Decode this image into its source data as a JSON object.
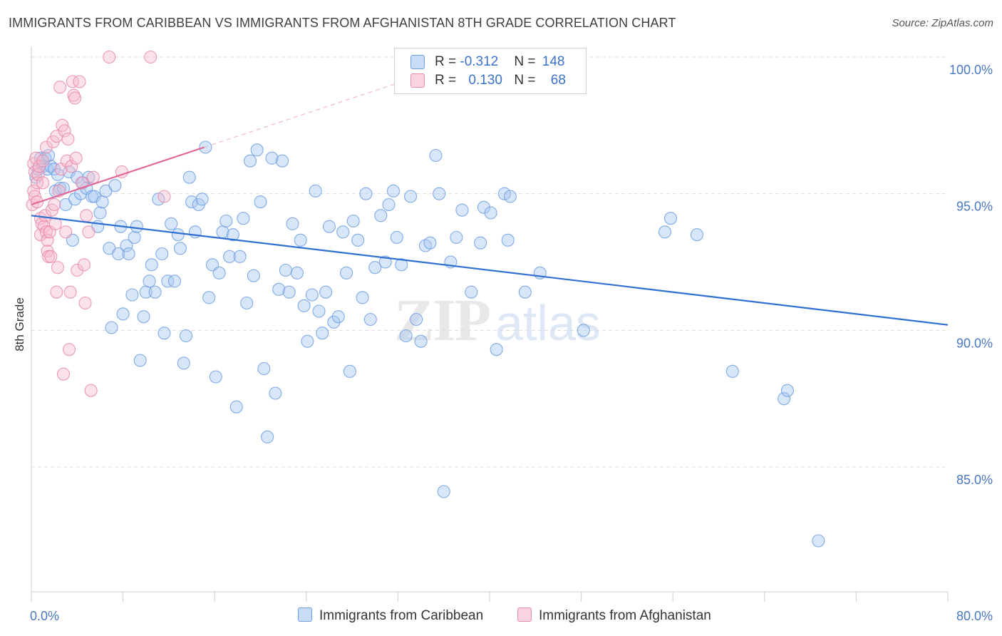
{
  "title": "IMMIGRANTS FROM CARIBBEAN VS IMMIGRANTS FROM AFGHANISTAN 8TH GRADE CORRELATION CHART",
  "source": "Source: ZipAtlas.com",
  "watermark": {
    "zip": "ZIP",
    "atlas": "atlas"
  },
  "legend": {
    "rows": [
      {
        "r_label": "R = ",
        "r_value": "-0.312",
        "n_label": "N = ",
        "n_value": "148",
        "color": "#6f9fe0",
        "fill": "#aecbf2"
      },
      {
        "r_label": "R = ",
        "r_value": "0.130",
        "n_label": "N = ",
        "n_value": "68",
        "color": "#e88aaa",
        "fill": "#f7c1d2"
      }
    ]
  },
  "bottom_legend": {
    "items": [
      {
        "label": "Immigrants from Caribbean",
        "color": "#6f9fe0",
        "fill": "#aecbf2"
      },
      {
        "label": "Immigrants from Afghanistan",
        "color": "#e88aaa",
        "fill": "#f7c1d2"
      }
    ]
  },
  "chart_data": {
    "type": "scatter",
    "title": "IMMIGRANTS FROM CARIBBEAN VS IMMIGRANTS FROM AFGHANISTAN 8TH GRADE CORRELATION CHART",
    "xlabel": "",
    "ylabel": "8th Grade",
    "xlim": [
      0,
      80
    ],
    "ylim": [
      80.5,
      100.5
    ],
    "x_tick_labels": [
      "0.0%",
      "80.0%"
    ],
    "y_ticks": [
      85,
      90,
      95,
      100
    ],
    "y_tick_labels": [
      "85.0%",
      "90.0%",
      "95.0%",
      "100.0%"
    ],
    "grid": "horizontal dashed",
    "legend_position": "top-center",
    "series": [
      {
        "name": "Immigrants from Caribbean",
        "color": "#6f9fe0",
        "trend": {
          "x": [
            0,
            80
          ],
          "y": [
            94.2,
            90.2
          ]
        },
        "points": [
          [
            0.4,
            95.6
          ],
          [
            0.6,
            95.9
          ],
          [
            0.8,
            96.3
          ],
          [
            1.0,
            96.0
          ],
          [
            1.2,
            96.3
          ],
          [
            1.4,
            95.9
          ],
          [
            1.5,
            96.4
          ],
          [
            1.7,
            96.0
          ],
          [
            2.0,
            95.9
          ],
          [
            2.1,
            95.1
          ],
          [
            2.3,
            95.7
          ],
          [
            2.5,
            95.2
          ],
          [
            2.8,
            95.2
          ],
          [
            3.0,
            94.6
          ],
          [
            3.3,
            95.8
          ],
          [
            3.6,
            93.3
          ],
          [
            3.8,
            94.8
          ],
          [
            4.0,
            95.6
          ],
          [
            4.3,
            95.0
          ],
          [
            4.5,
            95.4
          ],
          [
            4.8,
            95.2
          ],
          [
            5.0,
            95.6
          ],
          [
            5.3,
            94.9
          ],
          [
            5.5,
            94.9
          ],
          [
            5.8,
            93.8
          ],
          [
            6.0,
            94.3
          ],
          [
            6.2,
            94.7
          ],
          [
            6.5,
            95.1
          ],
          [
            6.8,
            93.0
          ],
          [
            7.0,
            90.1
          ],
          [
            7.3,
            95.3
          ],
          [
            7.6,
            92.8
          ],
          [
            7.8,
            93.8
          ],
          [
            8.0,
            90.6
          ],
          [
            8.3,
            93.1
          ],
          [
            8.5,
            92.8
          ],
          [
            8.8,
            91.3
          ],
          [
            9.0,
            93.4
          ],
          [
            9.2,
            93.8
          ],
          [
            9.5,
            88.9
          ],
          [
            9.8,
            90.5
          ],
          [
            10.0,
            91.4
          ],
          [
            10.3,
            91.8
          ],
          [
            10.5,
            92.4
          ],
          [
            10.8,
            91.4
          ],
          [
            11.1,
            94.8
          ],
          [
            11.4,
            92.8
          ],
          [
            11.6,
            89.9
          ],
          [
            11.9,
            91.8
          ],
          [
            12.2,
            93.9
          ],
          [
            12.5,
            91.8
          ],
          [
            12.8,
            93.5
          ],
          [
            13.0,
            93.0
          ],
          [
            13.3,
            88.8
          ],
          [
            13.5,
            89.8
          ],
          [
            13.8,
            95.6
          ],
          [
            14.0,
            94.7
          ],
          [
            14.3,
            93.6
          ],
          [
            14.6,
            94.6
          ],
          [
            14.9,
            94.8
          ],
          [
            15.2,
            96.7
          ],
          [
            15.5,
            91.2
          ],
          [
            15.8,
            92.4
          ],
          [
            16.1,
            88.3
          ],
          [
            16.4,
            92.1
          ],
          [
            16.7,
            93.6
          ],
          [
            17.0,
            94.0
          ],
          [
            17.3,
            92.7
          ],
          [
            17.6,
            93.5
          ],
          [
            17.9,
            87.2
          ],
          [
            18.2,
            92.7
          ],
          [
            18.5,
            94.1
          ],
          [
            18.8,
            91.0
          ],
          [
            19.1,
            96.2
          ],
          [
            19.4,
            92.0
          ],
          [
            19.7,
            96.6
          ],
          [
            20.0,
            94.7
          ],
          [
            20.3,
            88.6
          ],
          [
            20.6,
            86.1
          ],
          [
            21.0,
            96.3
          ],
          [
            21.3,
            87.7
          ],
          [
            21.6,
            91.5
          ],
          [
            21.9,
            96.2
          ],
          [
            22.2,
            92.2
          ],
          [
            22.5,
            91.4
          ],
          [
            22.8,
            93.9
          ],
          [
            23.2,
            92.1
          ],
          [
            23.5,
            93.3
          ],
          [
            23.8,
            90.9
          ],
          [
            24.1,
            89.6
          ],
          [
            24.5,
            91.3
          ],
          [
            24.8,
            95.1
          ],
          [
            25.1,
            90.7
          ],
          [
            25.4,
            89.9
          ],
          [
            25.7,
            91.4
          ],
          [
            26.0,
            93.8
          ],
          [
            26.4,
            90.3
          ],
          [
            26.8,
            90.5
          ],
          [
            27.2,
            93.6
          ],
          [
            27.5,
            92.1
          ],
          [
            27.8,
            88.5
          ],
          [
            28.1,
            94.0
          ],
          [
            28.5,
            93.3
          ],
          [
            28.9,
            91.2
          ],
          [
            29.2,
            95.0
          ],
          [
            29.6,
            90.4
          ],
          [
            30.0,
            92.3
          ],
          [
            30.5,
            94.2
          ],
          [
            30.9,
            92.5
          ],
          [
            31.2,
            94.6
          ],
          [
            31.6,
            95.1
          ],
          [
            31.9,
            93.4
          ],
          [
            32.3,
            92.4
          ],
          [
            32.7,
            89.8
          ],
          [
            33.1,
            94.9
          ],
          [
            33.6,
            90.4
          ],
          [
            34.0,
            89.6
          ],
          [
            34.4,
            93.1
          ],
          [
            34.8,
            93.2
          ],
          [
            35.3,
            96.4
          ],
          [
            35.6,
            95.0
          ],
          [
            36.0,
            84.1
          ],
          [
            36.6,
            92.5
          ],
          [
            37.1,
            93.4
          ],
          [
            37.6,
            94.4
          ],
          [
            38.4,
            91.4
          ],
          [
            39.2,
            93.2
          ],
          [
            39.5,
            94.5
          ],
          [
            40.1,
            94.3
          ],
          [
            40.6,
            89.3
          ],
          [
            41.3,
            95.0
          ],
          [
            41.6,
            93.3
          ],
          [
            41.8,
            94.9
          ],
          [
            43.1,
            91.4
          ],
          [
            43.8,
            100.0
          ],
          [
            44.4,
            92.1
          ],
          [
            47.6,
            100.0
          ],
          [
            48.2,
            90.0
          ],
          [
            55.3,
            93.6
          ],
          [
            55.8,
            94.1
          ],
          [
            58.1,
            93.5
          ],
          [
            61.2,
            88.5
          ],
          [
            65.7,
            87.5
          ],
          [
            66.0,
            87.8
          ],
          [
            68.7,
            82.3
          ]
        ]
      },
      {
        "name": "Immigrants from Afghanistan",
        "color": "#e88aaa",
        "trend": {
          "x": [
            0,
            15.1
          ],
          "y": [
            94.6,
            96.7
          ]
        },
        "points": [
          [
            0.1,
            94.6
          ],
          [
            0.2,
            95.1
          ],
          [
            0.2,
            96.1
          ],
          [
            0.3,
            95.8
          ],
          [
            0.3,
            94.9
          ],
          [
            0.4,
            96.3
          ],
          [
            0.5,
            95.4
          ],
          [
            0.5,
            94.7
          ],
          [
            0.6,
            95.7
          ],
          [
            0.7,
            96.0
          ],
          [
            0.8,
            93.5
          ],
          [
            0.8,
            94.1
          ],
          [
            0.9,
            93.9
          ],
          [
            1.0,
            96.2
          ],
          [
            1.0,
            95.4
          ],
          [
            1.1,
            93.8
          ],
          [
            1.2,
            94.2
          ],
          [
            1.3,
            96.7
          ],
          [
            1.3,
            93.6
          ],
          [
            1.4,
            92.9
          ],
          [
            1.4,
            93.3
          ],
          [
            1.5,
            92.7
          ],
          [
            1.6,
            93.6
          ],
          [
            1.7,
            92.7
          ],
          [
            1.8,
            94.4
          ],
          [
            1.9,
            96.9
          ],
          [
            2.0,
            94.6
          ],
          [
            2.1,
            93.9
          ],
          [
            2.2,
            97.1
          ],
          [
            2.2,
            91.4
          ],
          [
            2.3,
            92.3
          ],
          [
            2.4,
            95.1
          ],
          [
            2.5,
            98.9
          ],
          [
            2.6,
            95.9
          ],
          [
            2.7,
            97.5
          ],
          [
            2.8,
            88.4
          ],
          [
            2.9,
            97.3
          ],
          [
            3.0,
            93.6
          ],
          [
            3.1,
            96.2
          ],
          [
            3.2,
            97.0
          ],
          [
            3.3,
            89.3
          ],
          [
            3.4,
            91.4
          ],
          [
            3.5,
            96.0
          ],
          [
            3.6,
            99.1
          ],
          [
            3.7,
            98.6
          ],
          [
            3.8,
            98.5
          ],
          [
            3.9,
            96.3
          ],
          [
            4.0,
            92.2
          ],
          [
            4.2,
            99.1
          ],
          [
            4.4,
            95.4
          ],
          [
            4.6,
            92.4
          ],
          [
            4.7,
            91.0
          ],
          [
            4.8,
            94.2
          ],
          [
            5.0,
            93.6
          ],
          [
            5.2,
            87.8
          ],
          [
            5.4,
            95.6
          ],
          [
            6.8,
            100.0
          ],
          [
            7.9,
            95.8
          ],
          [
            10.4,
            100.0
          ],
          [
            11.6,
            94.9
          ]
        ]
      }
    ]
  }
}
